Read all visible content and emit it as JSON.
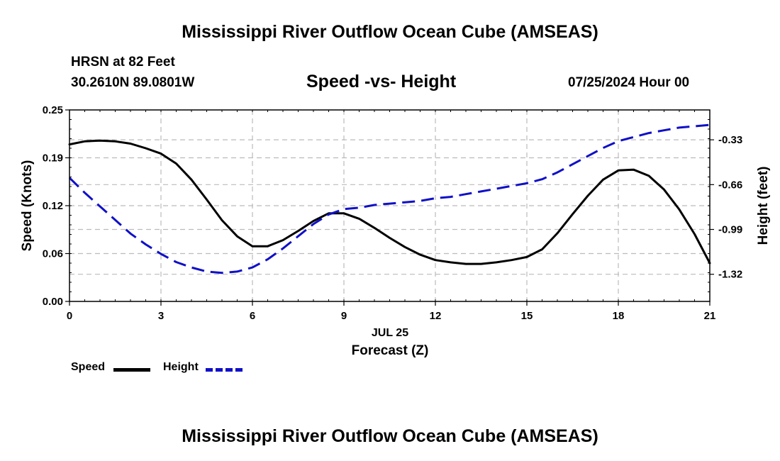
{
  "page": {
    "title_top": "Mississippi River Outflow Ocean Cube (AMSEAS)",
    "title_bottom": "Mississippi River Outflow Ocean Cube (AMSEAS)",
    "station": "HRSN at 82 Feet",
    "coords": "30.2610N  89.0801W",
    "chart_subtitle": "Speed -vs- Height",
    "date": "07/25/2024 Hour 00"
  },
  "legend": {
    "speed_label": "Speed",
    "height_label": "Height"
  },
  "colors": {
    "speed": "#000000",
    "height": "#1010c8",
    "grid": "#bbbbbb"
  },
  "chart_data": {
    "type": "line",
    "xlabel": "Forecast (Z)",
    "xlabel_date": "JUL 25",
    "ylabel_left": "Speed (Knots)",
    "ylabel_right": "Height (feet)",
    "xlim": [
      0,
      21
    ],
    "ylim_left": [
      0,
      0.25
    ],
    "ylim_right": [
      -1.52,
      -0.11
    ],
    "x_ticks": [
      "0",
      "3",
      "6",
      "9",
      "12",
      "15",
      "18",
      "21"
    ],
    "y_left_ticks": [
      "0.00",
      "0.06",
      "0.12",
      "0.19",
      "0.25"
    ],
    "y_left_tick_values": [
      0,
      0.0625,
      0.125,
      0.1875,
      0.25
    ],
    "y_right_ticks": [
      "-0.33",
      "-0.66",
      "-0.99",
      "-1.32"
    ],
    "y_right_tick_values": [
      -0.33,
      -0.66,
      -0.99,
      -1.32
    ],
    "grid": true,
    "series": [
      {
        "name": "Speed",
        "axis": "left",
        "style": "solid",
        "x": [
          0,
          0.5,
          1,
          1.5,
          2,
          2.5,
          3,
          3.5,
          4,
          4.5,
          5,
          5.5,
          6,
          6.5,
          7,
          7.5,
          8,
          8.5,
          9,
          9.5,
          10,
          10.5,
          11,
          11.5,
          12,
          12.5,
          13,
          13.5,
          14,
          14.5,
          15,
          15.5,
          16,
          16.5,
          17,
          17.5,
          18,
          18.5,
          19,
          19.5,
          20,
          20.5,
          21
        ],
        "values": [
          0.205,
          0.209,
          0.21,
          0.209,
          0.206,
          0.2,
          0.193,
          0.18,
          0.159,
          0.133,
          0.106,
          0.085,
          0.072,
          0.072,
          0.08,
          0.092,
          0.105,
          0.115,
          0.115,
          0.108,
          0.096,
          0.083,
          0.071,
          0.061,
          0.054,
          0.051,
          0.049,
          0.049,
          0.051,
          0.054,
          0.058,
          0.068,
          0.089,
          0.114,
          0.138,
          0.159,
          0.171,
          0.172,
          0.164,
          0.146,
          0.12,
          0.088,
          0.05
        ]
      },
      {
        "name": "Height",
        "axis": "right",
        "style": "dashed",
        "x": [
          0,
          0.5,
          1,
          1.5,
          2,
          2.5,
          3,
          3.5,
          4,
          4.5,
          5,
          5.5,
          6,
          6.5,
          7,
          7.5,
          8,
          8.5,
          9,
          9.5,
          10,
          10.5,
          11,
          11.5,
          12,
          12.5,
          13,
          13.5,
          14,
          14.5,
          15,
          15.5,
          16,
          16.5,
          17,
          17.5,
          18,
          18.5,
          19,
          19.5,
          20,
          20.5,
          21
        ],
        "values": [
          -0.61,
          -0.72,
          -0.82,
          -0.92,
          -1.02,
          -1.1,
          -1.17,
          -1.23,
          -1.27,
          -1.3,
          -1.31,
          -1.3,
          -1.27,
          -1.21,
          -1.13,
          -1.04,
          -0.95,
          -0.88,
          -0.84,
          -0.83,
          -0.81,
          -0.8,
          -0.79,
          -0.78,
          -0.76,
          -0.75,
          -0.73,
          -0.71,
          -0.69,
          -0.67,
          -0.65,
          -0.62,
          -0.57,
          -0.51,
          -0.45,
          -0.39,
          -0.34,
          -0.31,
          -0.28,
          -0.26,
          -0.24,
          -0.23,
          -0.22
        ]
      }
    ]
  }
}
